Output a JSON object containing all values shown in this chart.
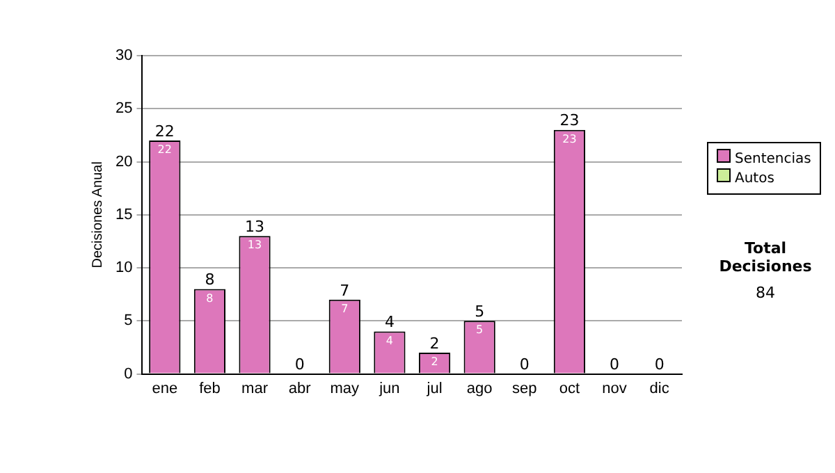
{
  "chart_data": {
    "type": "bar",
    "ylabel": "Decisiones Anual",
    "categories": [
      "ene",
      "feb",
      "mar",
      "abr",
      "may",
      "jun",
      "jul",
      "ago",
      "sep",
      "oct",
      "nov",
      "dic"
    ],
    "stacked": true,
    "series": [
      {
        "name": "Sentencias",
        "color": "#dd77bb",
        "values": [
          22,
          8,
          13,
          0,
          7,
          4,
          2,
          5,
          0,
          23,
          0,
          0
        ],
        "value_labels": [
          "22",
          "8",
          "13",
          null,
          "7",
          "4",
          "2",
          "5",
          null,
          "23",
          null,
          null
        ]
      },
      {
        "name": "Autos",
        "color": "#ccee99",
        "values": [
          0,
          0,
          0,
          0,
          0,
          0,
          0,
          0,
          0,
          0,
          0,
          0
        ]
      }
    ],
    "totals": [
      "22",
      "8",
      "13",
      "0",
      "7",
      "4",
      "2",
      "5",
      "0",
      "23",
      "0",
      "0"
    ],
    "ylim": [
      0,
      30
    ],
    "yticks": [
      0,
      5,
      10,
      15,
      20,
      25,
      30
    ],
    "grid": "y",
    "legend": "right",
    "annotations": [
      "Total Decisiones",
      "84"
    ]
  }
}
